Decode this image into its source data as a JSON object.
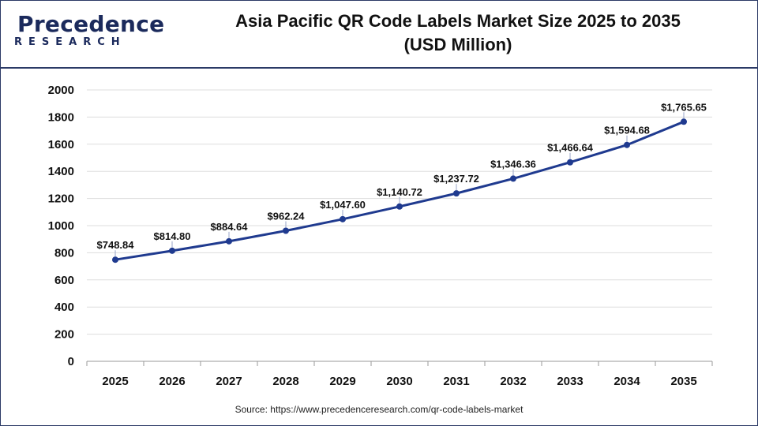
{
  "brand": {
    "logo_text": "Precedence",
    "logo_sub": "RESEARCH"
  },
  "header": {
    "title_line1": "Asia Pacific QR Code Labels Market Size 2025 to 2035",
    "title_line2": "(USD Million)"
  },
  "source_text": "Source: https://www.precedenceresearch.com/qr-code-labels-market",
  "colors": {
    "line": "#1f3a8f",
    "brand": "#1b2a5c",
    "grid": "#dddddd"
  },
  "chart_data": {
    "type": "line",
    "title": "Asia Pacific QR Code Labels Market Size 2025 to 2035 (USD Million)",
    "x": [
      "2025",
      "2026",
      "2027",
      "2028",
      "2029",
      "2030",
      "2031",
      "2032",
      "2033",
      "2034",
      "2035"
    ],
    "series": [
      {
        "values": [
          748.84,
          814.8,
          884.64,
          962.24,
          1047.6,
          1140.72,
          1237.72,
          1346.36,
          1466.64,
          1594.68,
          1765.65
        ],
        "labels": [
          "$748.84",
          "$814.80",
          "$884.64",
          "$962.24",
          "$1,047.60",
          "$1,140.72",
          "$1,237.72",
          "$1,346.36",
          "$1,466.64",
          "$1,594.68",
          "$1,765.65"
        ]
      }
    ],
    "ylim": [
      0,
      2000
    ],
    "yticks": [
      0,
      200,
      400,
      600,
      800,
      1000,
      1200,
      1400,
      1600,
      1800,
      2000
    ],
    "grid": true,
    "xlabel": "",
    "ylabel": ""
  }
}
